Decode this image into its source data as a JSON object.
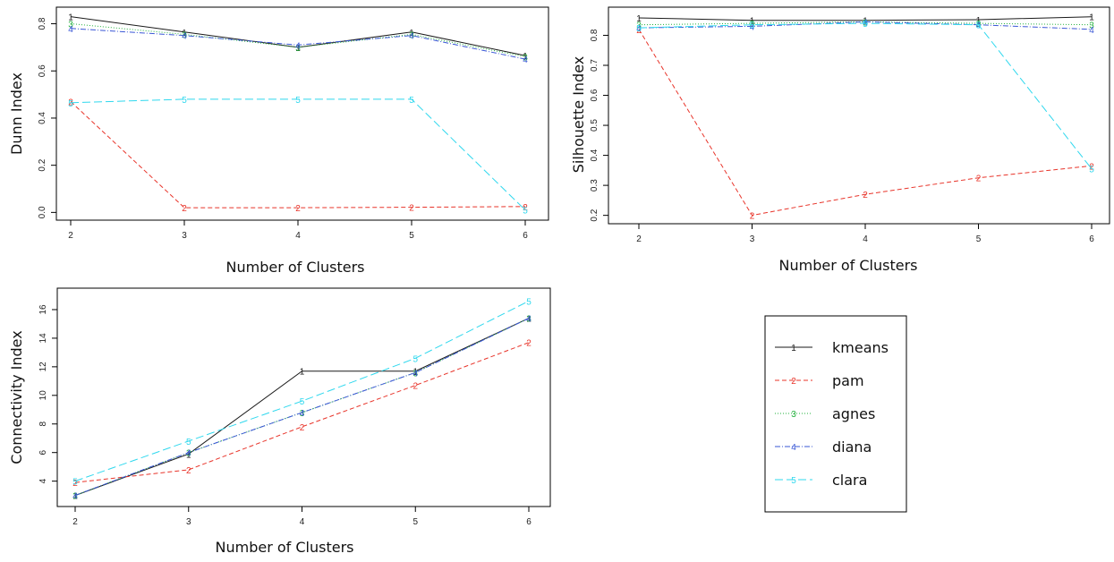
{
  "series_styles": [
    {
      "name": "kmeans",
      "marker": "1",
      "color": "#1a1a1a",
      "dash": ""
    },
    {
      "name": "pam",
      "marker": "2",
      "color": "#e8342a",
      "dash": "5,3"
    },
    {
      "name": "agnes",
      "marker": "3",
      "color": "#22b03c",
      "dash": "1,2"
    },
    {
      "name": "diana",
      "marker": "4",
      "color": "#3a57d6",
      "dash": "6,2,1,2"
    },
    {
      "name": "clara",
      "marker": "5",
      "color": "#2fd8ee",
      "dash": "9,4"
    }
  ],
  "chart_data": [
    {
      "type": "line",
      "xlabel": "Number of Clusters",
      "ylabel": "Dunn Index",
      "x": [
        2,
        3,
        4,
        5,
        6
      ],
      "xticks": [
        "2",
        "3",
        "4",
        "5",
        "6"
      ],
      "xlim": [
        2,
        6
      ],
      "ylim": [
        -0.01,
        0.84
      ],
      "yticks": [
        "0.0",
        "0.2",
        "0.4",
        "0.6",
        "0.8"
      ],
      "ytick_values": [
        0.0,
        0.2,
        0.4,
        0.6,
        0.8
      ],
      "series": [
        {
          "name": "kmeans",
          "values": [
            0.83,
            0.765,
            0.7,
            0.765,
            0.665
          ]
        },
        {
          "name": "pam",
          "values": [
            0.47,
            0.02,
            0.02,
            0.022,
            0.025
          ]
        },
        {
          "name": "agnes",
          "values": [
            0.8,
            0.755,
            0.7,
            0.755,
            0.66
          ]
        },
        {
          "name": "diana",
          "values": [
            0.78,
            0.75,
            0.71,
            0.75,
            0.65
          ]
        },
        {
          "name": "clara",
          "values": [
            0.465,
            0.48,
            0.48,
            0.48,
            0.01
          ]
        }
      ]
    },
    {
      "type": "line",
      "xlabel": "Number of Clusters",
      "ylabel": "Silhouette Index",
      "x": [
        2,
        3,
        4,
        5,
        6
      ],
      "xticks": [
        "2",
        "3",
        "4",
        "5",
        "6"
      ],
      "xlim": [
        2,
        6
      ],
      "ylim": [
        0.19,
        0.87
      ],
      "yticks": [
        "0.2",
        "0.3",
        "0.4",
        "0.5",
        "0.6",
        "0.7",
        "0.8"
      ],
      "ytick_values": [
        0.2,
        0.3,
        0.4,
        0.5,
        0.6,
        0.7,
        0.8
      ],
      "series": [
        {
          "name": "kmeans",
          "values": [
            0.858,
            0.85,
            0.85,
            0.852,
            0.862
          ]
        },
        {
          "name": "pam",
          "values": [
            0.82,
            0.2,
            0.27,
            0.325,
            0.365
          ]
        },
        {
          "name": "agnes",
          "values": [
            0.835,
            0.84,
            0.845,
            0.84,
            0.835
          ]
        },
        {
          "name": "diana",
          "values": [
            0.825,
            0.83,
            0.845,
            0.835,
            0.82
          ]
        },
        {
          "name": "clara",
          "values": [
            0.825,
            0.835,
            0.84,
            0.835,
            0.355
          ]
        }
      ]
    },
    {
      "type": "line",
      "xlabel": "Number of Clusters",
      "ylabel": "Connectivity Index",
      "x": [
        2,
        3,
        4,
        5,
        6
      ],
      "xticks": [
        "2",
        "3",
        "4",
        "5",
        "6"
      ],
      "xlim": [
        2,
        6
      ],
      "ylim": [
        2.6,
        17.0
      ],
      "yticks": [
        "4",
        "6",
        "8",
        "10",
        "12",
        "14",
        "16"
      ],
      "ytick_values": [
        4,
        6,
        8,
        10,
        12,
        14,
        16
      ],
      "series": [
        {
          "name": "kmeans",
          "values": [
            3.0,
            5.9,
            11.7,
            11.7,
            15.4
          ]
        },
        {
          "name": "pam",
          "values": [
            3.9,
            4.8,
            7.8,
            10.7,
            13.7
          ]
        },
        {
          "name": "agnes",
          "values": [
            3.0,
            6.0,
            8.8,
            11.6,
            15.4
          ]
        },
        {
          "name": "diana",
          "values": [
            3.0,
            6.0,
            8.8,
            11.6,
            15.4
          ]
        },
        {
          "name": "clara",
          "values": [
            4.0,
            6.8,
            9.6,
            12.6,
            16.6
          ]
        }
      ]
    }
  ]
}
